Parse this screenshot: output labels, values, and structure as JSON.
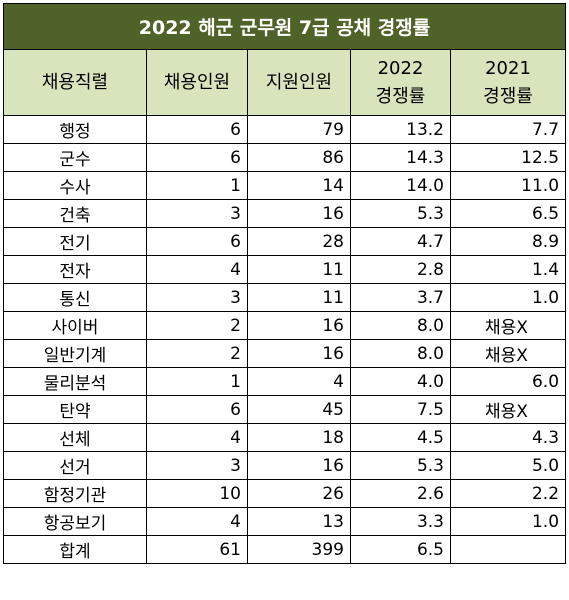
{
  "chart_data": {
    "type": "table",
    "title": "2022 해군 군무원 7급 공채  경쟁률",
    "columns": [
      "채용직렬",
      "채용인원",
      "지원인원",
      "2022\n경쟁률",
      "2021\n경쟁률"
    ],
    "rows": [
      [
        "행정",
        "6",
        "79",
        "13.2",
        "7.7"
      ],
      [
        "군수",
        "6",
        "86",
        "14.3",
        "12.5"
      ],
      [
        "수사",
        "1",
        "14",
        "14.0",
        "11.0"
      ],
      [
        "건축",
        "3",
        "16",
        "5.3",
        "6.5"
      ],
      [
        "전기",
        "6",
        "28",
        "4.7",
        "8.9"
      ],
      [
        "전자",
        "4",
        "11",
        "2.8",
        "1.4"
      ],
      [
        "통신",
        "3",
        "11",
        "3.7",
        "1.0"
      ],
      [
        "사이버",
        "2",
        "16",
        "8.0",
        "채용X"
      ],
      [
        "일반기계",
        "2",
        "16",
        "8.0",
        "채용X"
      ],
      [
        "물리분석",
        "1",
        "4",
        "4.0",
        "6.0"
      ],
      [
        "탄약",
        "6",
        "45",
        "7.5",
        "채용X"
      ],
      [
        "선체",
        "4",
        "18",
        "4.5",
        "4.3"
      ],
      [
        "선거",
        "3",
        "16",
        "5.3",
        "5.0"
      ],
      [
        "함정기관",
        "10",
        "26",
        "2.6",
        "2.2"
      ],
      [
        "항공보기",
        "4",
        "13",
        "3.3",
        "1.0"
      ],
      [
        "합계",
        "61",
        "399",
        "6.5",
        ""
      ]
    ]
  },
  "colors": {
    "title_bg": "#4f6228",
    "title_text": "#ffffff",
    "header_bg": "#d8e4bc",
    "border": "#000000"
  }
}
